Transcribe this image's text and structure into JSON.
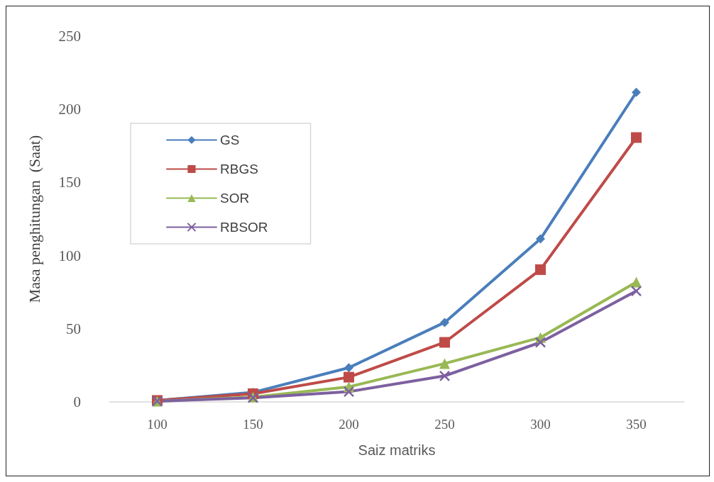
{
  "chart_data": {
    "type": "line",
    "xlabel": "Saiz matriks",
    "ylabel": "Masa penghitungan  (Saat)",
    "categories": [
      "100",
      "150",
      "200",
      "250",
      "300",
      "350"
    ],
    "series": [
      {
        "name": "GS",
        "color": "#4a7ebb",
        "marker": "diamond",
        "values": [
          1,
          6.5,
          23.4,
          54.3,
          111.4,
          211.6
        ]
      },
      {
        "name": "RBGS",
        "color": "#be4b48",
        "marker": "square",
        "values": [
          1,
          5.6,
          16.9,
          40.7,
          90.4,
          180.7
        ]
      },
      {
        "name": "SOR",
        "color": "#98b954",
        "marker": "triangle",
        "values": [
          0.5,
          3.3,
          10.3,
          26.2,
          44,
          81.9
        ]
      },
      {
        "name": "RBSOR",
        "color": "#7d60a0",
        "marker": "cross",
        "values": [
          0.5,
          2.8,
          7,
          17.8,
          40.7,
          75.8
        ]
      }
    ],
    "ylim": [
      0,
      250
    ],
    "yticks": [
      0,
      50,
      100,
      150,
      200,
      250
    ],
    "grid": false,
    "legend": "top left",
    "line_style": "solid"
  }
}
